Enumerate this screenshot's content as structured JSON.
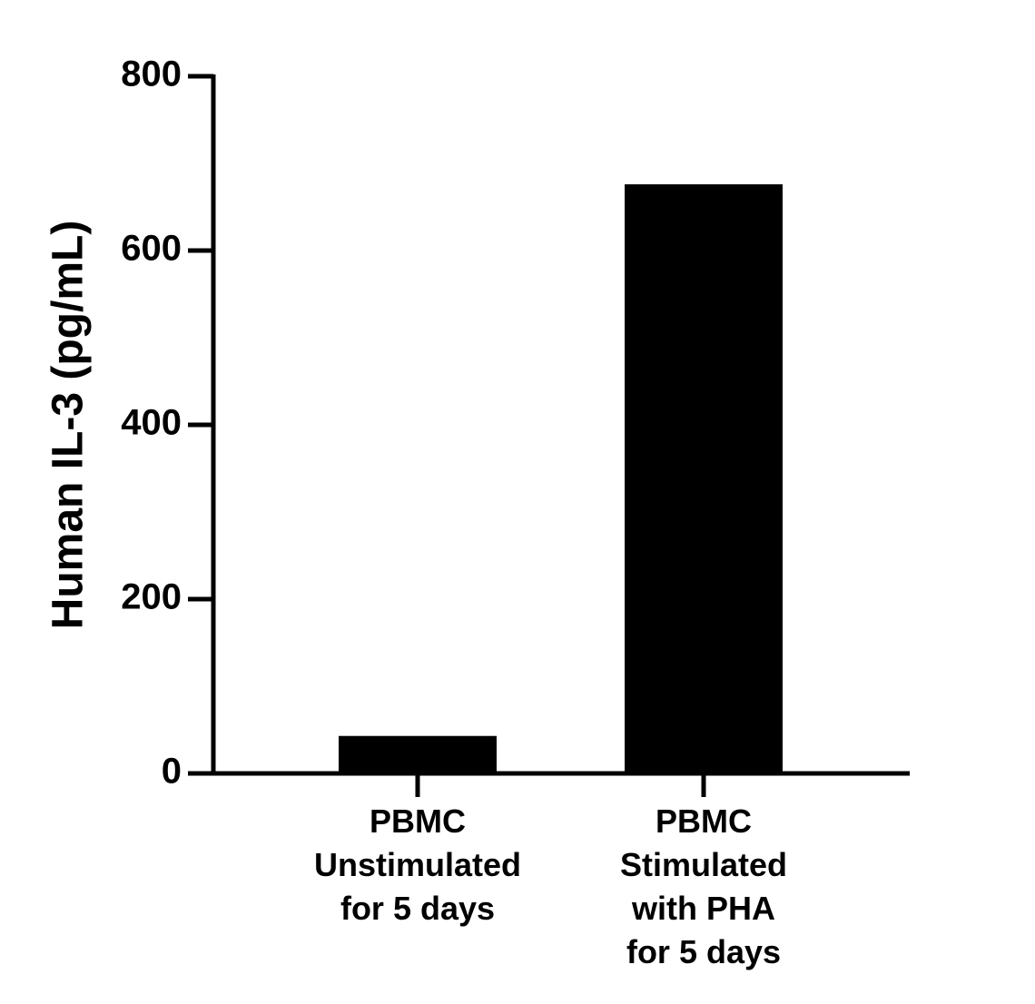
{
  "chart_data": {
    "type": "bar",
    "y_label": "Human IL-3 (pg/mL)",
    "categories": [
      "PBMC\nUnstimulated\nfor 5 days",
      "PBMC\nStimulated\nwith PHA\nfor 5 days"
    ],
    "values": [
      43,
      676
    ],
    "color": "#000000",
    "ylim": [
      0,
      800
    ],
    "yticks": [
      0,
      200,
      400,
      600,
      800
    ],
    "grid": false
  }
}
